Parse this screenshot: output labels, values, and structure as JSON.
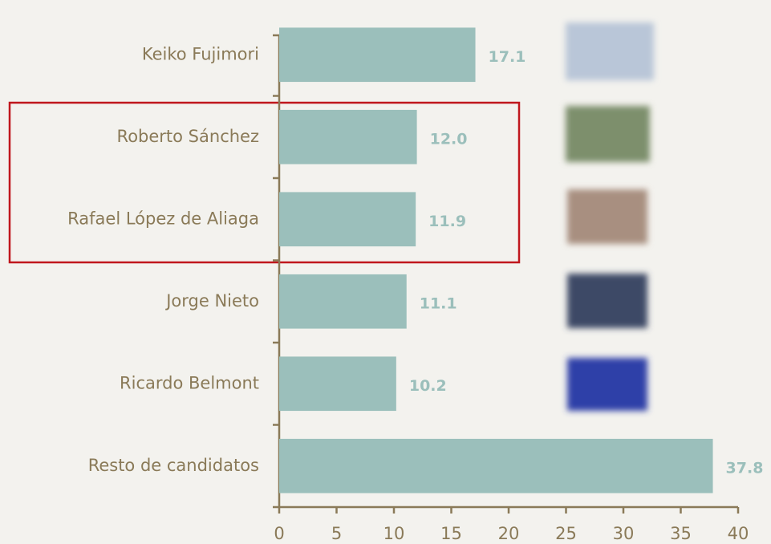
{
  "chart_data": {
    "type": "barh",
    "categories": [
      "Keiko Fujimori",
      "Roberto Sánchez",
      "Rafael López de Aliaga",
      "Jorge Nieto",
      "Ricardo Belmont",
      "Resto de candidatos"
    ],
    "values": [
      17.1,
      12.0,
      11.9,
      11.1,
      10.2,
      37.8
    ],
    "value_labels": [
      "17.1",
      "12.0",
      "11.9",
      "11.1",
      "10.2",
      "37.8"
    ],
    "color": "#9bbfbb",
    "xlim": [
      0,
      40
    ],
    "xticks": [
      0,
      5,
      10,
      15,
      20,
      25,
      30,
      35,
      40
    ]
  }
}
